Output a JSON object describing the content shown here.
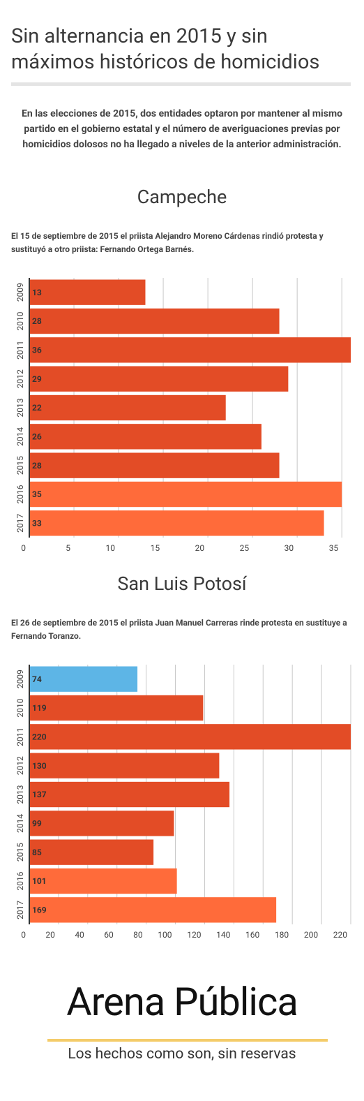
{
  "title": "Sin alternancia en 2015 y sin máximos históricos de homicidios",
  "intro": "En las elecciones de 2015, dos entidades optaron por mantener al mismo partido en el gobierno estatal y el número de averiguaciones previas por homicidios dolosos no ha llegado a niveles de la anterior administración.",
  "chart_data": [
    {
      "type": "bar",
      "orientation": "horizontal",
      "title": "Campeche",
      "subtitle": "El 15 de septiembre de 2015 el priista Alejandro Moreno Cárdenas rindió protesta y sustituyó a otro priista: Fernando Ortega Barnés.",
      "categories": [
        "2009",
        "2010",
        "2011",
        "2012",
        "2013",
        "2014",
        "2015",
        "2016",
        "2017"
      ],
      "values": [
        13,
        28,
        36,
        29,
        22,
        26,
        28,
        35,
        33
      ],
      "colors": [
        "#e34c26",
        "#e34c26",
        "#e34c26",
        "#e34c26",
        "#e34c26",
        "#e34c26",
        "#e34c26",
        "#ff6b3a",
        "#ff6b3a"
      ],
      "xlim": [
        0,
        36
      ],
      "xticks": [
        0,
        5,
        10,
        15,
        20,
        25,
        30,
        35
      ],
      "grid": true
    },
    {
      "type": "bar",
      "orientation": "horizontal",
      "title": "San Luis Potosí",
      "subtitle": "El 26 de septiembre de 2015 el priista Juan Manuel Carreras rinde protesta en sustituye a Fernando Toranzo.",
      "categories": [
        "2009",
        "2010",
        "2011",
        "2012",
        "2013",
        "2014",
        "2015",
        "2016",
        "2017"
      ],
      "values": [
        74,
        119,
        220,
        130,
        137,
        99,
        85,
        101,
        169
      ],
      "colors": [
        "#5db5e6",
        "#e34c26",
        "#e34c26",
        "#e34c26",
        "#e34c26",
        "#e34c26",
        "#e34c26",
        "#ff6b3a",
        "#ff6b3a"
      ],
      "xlim": [
        0,
        220
      ],
      "xticks": [
        0,
        20,
        40,
        60,
        80,
        100,
        120,
        140,
        160,
        180,
        200,
        220
      ],
      "grid": true
    }
  ],
  "logo": {
    "name": "Arena Pública",
    "tagline": "Los hechos como son, sin reservas"
  }
}
